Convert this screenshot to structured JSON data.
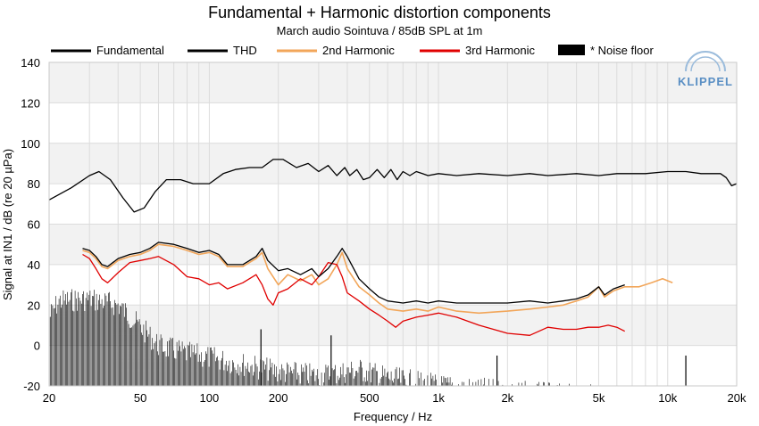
{
  "chart_data": {
    "type": "line",
    "title": "Fundamental + Harmonic distortion components",
    "subtitle": "March audio Sointuva / 85dB SPL at 1m",
    "xlabel": "Frequency / Hz",
    "ylabel": "Signal at IN1 / dB (re 20 µPa)",
    "xscale": "log",
    "xlim": [
      20,
      20000
    ],
    "ylim": [
      -20,
      140
    ],
    "x_ticks": [
      20,
      50,
      100,
      200,
      500,
      1000,
      2000,
      5000,
      10000,
      20000
    ],
    "x_tick_labels": [
      "20",
      "50",
      "100",
      "200",
      "500",
      "1k",
      "2k",
      "5k",
      "10k",
      "20k"
    ],
    "y_ticks": [
      -20,
      0,
      20,
      40,
      60,
      80,
      100,
      120,
      140
    ],
    "y_tick_labels": [
      "-20",
      "0",
      "20",
      "40",
      "60",
      "80",
      "100",
      "120",
      "140"
    ],
    "grid": true,
    "logo": "KLIPPEL",
    "legend": [
      {
        "label": "Fundamental",
        "color": "#000000",
        "style": "line"
      },
      {
        "label": "THD",
        "color": "#000000",
        "style": "line"
      },
      {
        "label": "2nd Harmonic",
        "color": "#f2a65a",
        "style": "line"
      },
      {
        "label": "3rd Harmonic",
        "color": "#e00000",
        "style": "line"
      },
      {
        "label": "* Noise floor",
        "color": "#000000",
        "style": "bar"
      }
    ],
    "series": [
      {
        "name": "Fundamental",
        "color": "#000000",
        "x": [
          20,
          25,
          30,
          33,
          37,
          42,
          47,
          52,
          58,
          65,
          75,
          85,
          100,
          115,
          130,
          150,
          170,
          190,
          210,
          240,
          270,
          300,
          330,
          360,
          390,
          410,
          440,
          470,
          500,
          540,
          580,
          620,
          660,
          700,
          750,
          800,
          850,
          900,
          1000,
          1200,
          1500,
          2000,
          2500,
          3000,
          4000,
          5000,
          6000,
          7000,
          8000,
          10000,
          12000,
          14000,
          16000,
          17000,
          18000,
          19000,
          20000
        ],
        "y": [
          72,
          78,
          84,
          86,
          82,
          73,
          66,
          68,
          76,
          82,
          82,
          80,
          80,
          85,
          87,
          88,
          88,
          92,
          92,
          88,
          90,
          86,
          89,
          84,
          88,
          84,
          87,
          82,
          83,
          87,
          83,
          87,
          82,
          86,
          84,
          86,
          85,
          84,
          85,
          84,
          85,
          84,
          85,
          84,
          85,
          84,
          85,
          85,
          85,
          86,
          86,
          85,
          85,
          85,
          83,
          79,
          80
        ]
      },
      {
        "name": "THD",
        "color": "#000000",
        "x": [
          28,
          30,
          32,
          34,
          36,
          40,
          45,
          50,
          55,
          60,
          70,
          80,
          90,
          100,
          110,
          120,
          140,
          160,
          170,
          180,
          200,
          220,
          250,
          280,
          300,
          330,
          360,
          380,
          400,
          450,
          500,
          550,
          600,
          700,
          800,
          900,
          1000,
          1200,
          1500,
          2000,
          2500,
          3000,
          3500,
          4000,
          4500,
          5000,
          5300,
          5800,
          6500
        ],
        "y": [
          48,
          47,
          44,
          40,
          39,
          43,
          45,
          46,
          48,
          51,
          50,
          48,
          46,
          47,
          45,
          40,
          40,
          44,
          48,
          42,
          37,
          38,
          35,
          38,
          34,
          38,
          44,
          48,
          44,
          33,
          28,
          24,
          22,
          21,
          22,
          21,
          22,
          21,
          21,
          21,
          22,
          21,
          22,
          23,
          25,
          29,
          25,
          28,
          30
        ]
      },
      {
        "name": "2nd Harmonic",
        "color": "#f2a65a",
        "x": [
          28,
          30,
          32,
          34,
          36,
          40,
          45,
          50,
          55,
          60,
          70,
          80,
          90,
          100,
          110,
          120,
          140,
          160,
          170,
          180,
          200,
          220,
          250,
          280,
          300,
          330,
          360,
          380,
          400,
          450,
          500,
          550,
          600,
          700,
          800,
          900,
          1000,
          1200,
          1500,
          2000,
          2500,
          3000,
          3500,
          4000,
          4500,
          5000,
          5300,
          5800,
          6500,
          7500,
          8500,
          9500,
          10500
        ],
        "y": [
          47,
          46,
          43,
          39,
          38,
          42,
          44,
          45,
          47,
          50,
          49,
          47,
          45,
          46,
          44,
          39,
          39,
          43,
          46,
          38,
          30,
          35,
          32,
          35,
          30,
          33,
          40,
          46,
          38,
          29,
          25,
          21,
          18,
          17,
          18,
          17,
          19,
          17,
          16,
          17,
          18,
          19,
          20,
          22,
          24,
          29,
          24,
          27,
          29,
          29,
          31,
          33,
          31
        ]
      },
      {
        "name": "3rd Harmonic",
        "color": "#e00000",
        "x": [
          28,
          30,
          32,
          34,
          36,
          40,
          45,
          50,
          55,
          60,
          70,
          80,
          90,
          100,
          110,
          120,
          140,
          160,
          170,
          180,
          190,
          200,
          220,
          250,
          280,
          300,
          330,
          360,
          380,
          400,
          450,
          500,
          550,
          600,
          650,
          700,
          800,
          900,
          1000,
          1200,
          1500,
          2000,
          2500,
          3000,
          3500,
          4000,
          4500,
          5000,
          5500,
          6000,
          6500
        ],
        "y": [
          45,
          43,
          38,
          33,
          31,
          36,
          41,
          42,
          43,
          44,
          40,
          34,
          33,
          30,
          31,
          28,
          31,
          35,
          30,
          23,
          20,
          26,
          28,
          33,
          30,
          34,
          41,
          40,
          34,
          26,
          22,
          18,
          15,
          12,
          9,
          12,
          14,
          15,
          16,
          14,
          10,
          6,
          5,
          9,
          8,
          8,
          9,
          9,
          10,
          9,
          7
        ]
      }
    ],
    "noise_floor": {
      "name": "* Noise floor",
      "x_range": [
        20,
        20000
      ],
      "envelope": [
        {
          "x": 20,
          "y": 20
        },
        {
          "x": 22,
          "y": 28
        },
        {
          "x": 30,
          "y": 29
        },
        {
          "x": 40,
          "y": 26
        },
        {
          "x": 50,
          "y": 15
        },
        {
          "x": 60,
          "y": 6
        },
        {
          "x": 80,
          "y": 2
        },
        {
          "x": 100,
          "y": 0
        },
        {
          "x": 150,
          "y": -4
        },
        {
          "x": 200,
          "y": -7
        },
        {
          "x": 300,
          "y": -9
        },
        {
          "x": 450,
          "y": -6
        },
        {
          "x": 600,
          "y": -10
        },
        {
          "x": 1000,
          "y": -14
        },
        {
          "x": 2000,
          "y": -17
        },
        {
          "x": 4000,
          "y": -19
        },
        {
          "x": 7000,
          "y": -20
        }
      ],
      "spikes": [
        {
          "x": 168,
          "y": 8
        },
        {
          "x": 340,
          "y": 5
        },
        {
          "x": 1800,
          "y": -5
        },
        {
          "x": 12000,
          "y": -5
        }
      ]
    }
  }
}
